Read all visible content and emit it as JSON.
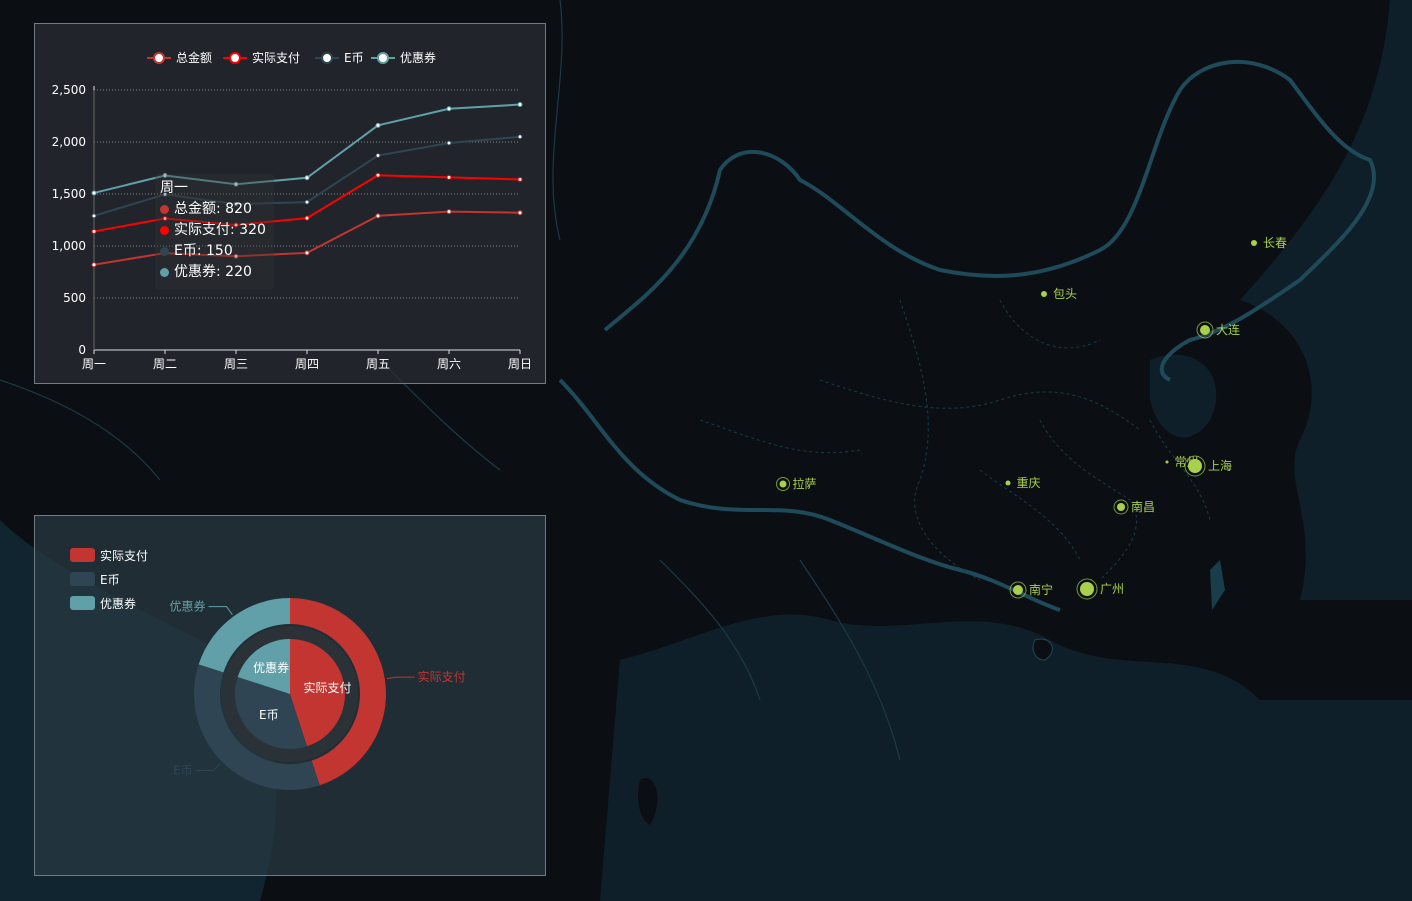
{
  "map": {
    "cities": [
      {
        "name": "长春"
      },
      {
        "name": "包头"
      },
      {
        "name": "大连"
      },
      {
        "name": "常州"
      },
      {
        "name": "上海"
      },
      {
        "name": "拉萨"
      },
      {
        "name": "重庆"
      },
      {
        "name": "南昌"
      },
      {
        "name": "南宁"
      },
      {
        "name": "广州"
      }
    ],
    "colors": {
      "marker": "#a8d04a",
      "border": "#1e4a5a",
      "land": "#0b0e13",
      "sea": "#10222c"
    }
  },
  "line_panel": {
    "legend": [
      "总金额",
      "实际支付",
      "E币",
      "优惠券"
    ],
    "tooltip": {
      "title": "周一",
      "rows": [
        {
          "label": "总金额: 820",
          "color": "#c23531"
        },
        {
          "label": "实际支付: 320",
          "color": "#ff0000"
        },
        {
          "label": "E币: 150",
          "color": "#2f4554"
        },
        {
          "label": "优惠券: 220",
          "color": "#61a0a8"
        }
      ]
    }
  },
  "pie_panel": {
    "legend": [
      {
        "label": "实际支付",
        "color": "#c23531"
      },
      {
        "label": "E币",
        "color": "#2f4554"
      },
      {
        "label": "优惠券",
        "color": "#61a0a8"
      }
    ],
    "outer_labels": [
      "实际支付",
      "E币",
      "优惠券"
    ],
    "inner_labels": [
      "实际支付",
      "E币",
      "优惠券"
    ]
  },
  "chart_data": [
    {
      "type": "line",
      "categories": [
        "周一",
        "周二",
        "周三",
        "周四",
        "周五",
        "周六",
        "周日"
      ],
      "ylim": [
        0,
        2500
      ],
      "yticks": [
        "0",
        "500",
        "1,000",
        "1,500",
        "2,000",
        "2,500"
      ],
      "grid": true,
      "legend_position": "top-center",
      "stacked": true,
      "series": [
        {
          "name": "总金额",
          "color": "#c23531",
          "values": [
            820,
            932,
            901,
            934,
            1290,
            1330,
            1320
          ]
        },
        {
          "name": "实际支付",
          "color": "#ff0000",
          "values": [
            320,
            332,
            301,
            334,
            390,
            330,
            320
          ]
        },
        {
          "name": "E币",
          "color": "#2f4554",
          "values": [
            150,
            232,
            201,
            154,
            190,
            330,
            410
          ]
        },
        {
          "name": "优惠券",
          "color": "#61a0a8",
          "values": [
            220,
            182,
            191,
            234,
            290,
            330,
            310
          ]
        }
      ]
    },
    {
      "type": "pie",
      "rings": [
        {
          "ring": "outer",
          "slices": [
            {
              "name": "实际支付",
              "value": 45,
              "color": "#c23531"
            },
            {
              "name": "E币",
              "value": 35,
              "color": "#2f4554"
            },
            {
              "name": "优惠券",
              "value": 20,
              "color": "#61a0a8"
            }
          ]
        },
        {
          "ring": "inner",
          "slices": [
            {
              "name": "实际支付",
              "value": 45,
              "color": "#c23531"
            },
            {
              "name": "E币",
              "value": 35,
              "color": "#2f4554"
            },
            {
              "name": "优惠券",
              "value": 20,
              "color": "#61a0a8"
            }
          ]
        }
      ],
      "legend_position": "top-left"
    }
  ]
}
